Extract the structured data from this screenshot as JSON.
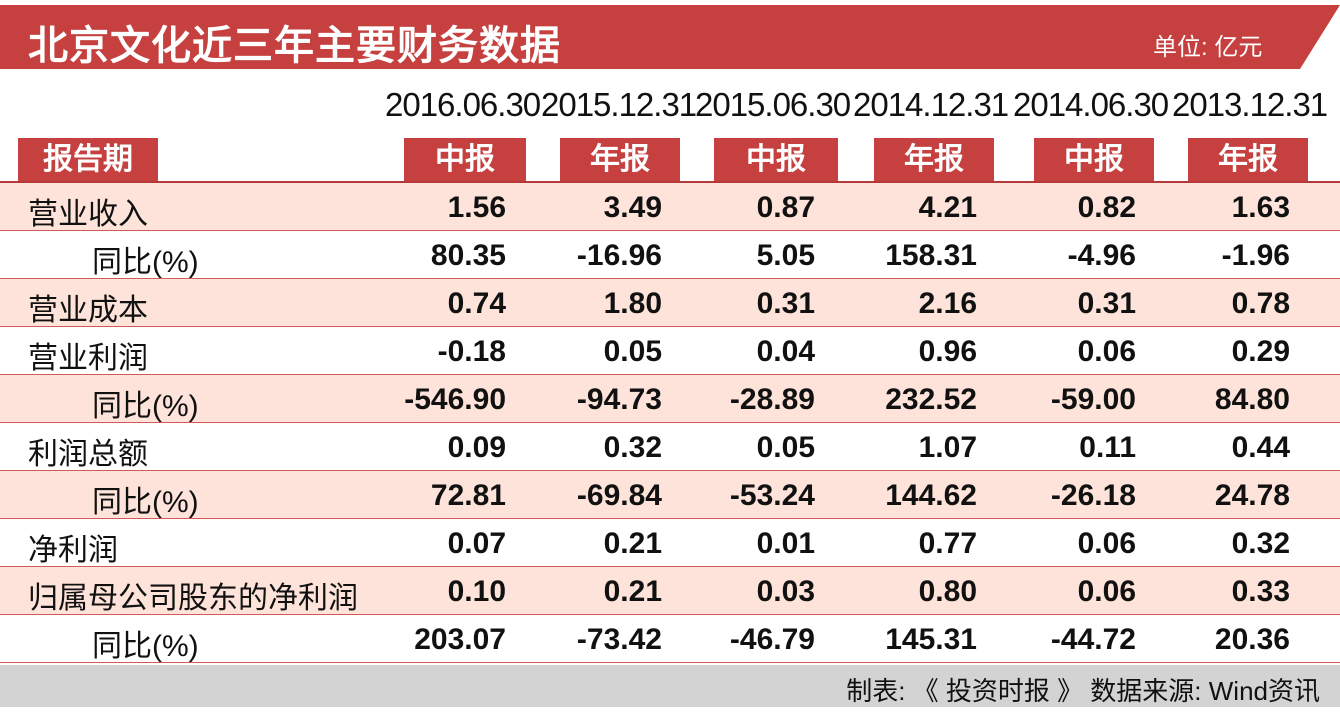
{
  "header": {
    "title": "北京文化近三年主要财务数据",
    "unit": "单位: 亿元"
  },
  "period_label": "报告期",
  "columns": [
    {
      "date": "2016.06.30",
      "type": "中报"
    },
    {
      "date": "2015.12.31",
      "type": "年报"
    },
    {
      "date": "2015.06.30",
      "type": "中报"
    },
    {
      "date": "2014.12.31",
      "type": "年报"
    },
    {
      "date": "2014.06.30",
      "type": "中报"
    },
    {
      "date": "2013.12.31",
      "type": "年报"
    }
  ],
  "rows": [
    {
      "label": "营业收入",
      "level": 0,
      "shaded": true,
      "values": [
        "1.56",
        "3.49",
        "0.87",
        "4.21",
        "0.82",
        "1.63"
      ]
    },
    {
      "label": "同比(%)",
      "level": 1,
      "shaded": false,
      "values": [
        "80.35",
        "-16.96",
        "5.05",
        "158.31",
        "-4.96",
        "-1.96"
      ]
    },
    {
      "label": "营业成本",
      "level": 0,
      "shaded": true,
      "values": [
        "0.74",
        "1.80",
        "0.31",
        "2.16",
        "0.31",
        "0.78"
      ]
    },
    {
      "label": "营业利润",
      "level": 0,
      "shaded": false,
      "values": [
        "-0.18",
        "0.05",
        "0.04",
        "0.96",
        "0.06",
        "0.29"
      ]
    },
    {
      "label": "同比(%)",
      "level": 1,
      "shaded": true,
      "values": [
        "-546.90",
        "-94.73",
        "-28.89",
        "232.52",
        "-59.00",
        "84.80"
      ]
    },
    {
      "label": "利润总额",
      "level": 0,
      "shaded": false,
      "values": [
        "0.09",
        "0.32",
        "0.05",
        "1.07",
        "0.11",
        "0.44"
      ]
    },
    {
      "label": "同比(%)",
      "level": 1,
      "shaded": true,
      "values": [
        "72.81",
        "-69.84",
        "-53.24",
        "144.62",
        "-26.18",
        "24.78"
      ]
    },
    {
      "label": "净利润",
      "level": 0,
      "shaded": false,
      "values": [
        "0.07",
        "0.21",
        "0.01",
        "0.77",
        "0.06",
        "0.32"
      ]
    },
    {
      "label": "归属母公司股东的净利润",
      "level": 0,
      "shaded": true,
      "values": [
        "0.10",
        "0.21",
        "0.03",
        "0.80",
        "0.06",
        "0.33"
      ]
    },
    {
      "label": "同比(%)",
      "level": 1,
      "shaded": false,
      "values": [
        "203.07",
        "-73.42",
        "-46.79",
        "145.31",
        "-44.72",
        "20.36"
      ]
    }
  ],
  "footer": {
    "text": "制表: 《 投资时报 》 数据来源: Wind资讯"
  },
  "colors": {
    "accent_red": "#c5403e",
    "row_shade": "#fde3d9",
    "footer_gray": "#d3d3d3"
  }
}
